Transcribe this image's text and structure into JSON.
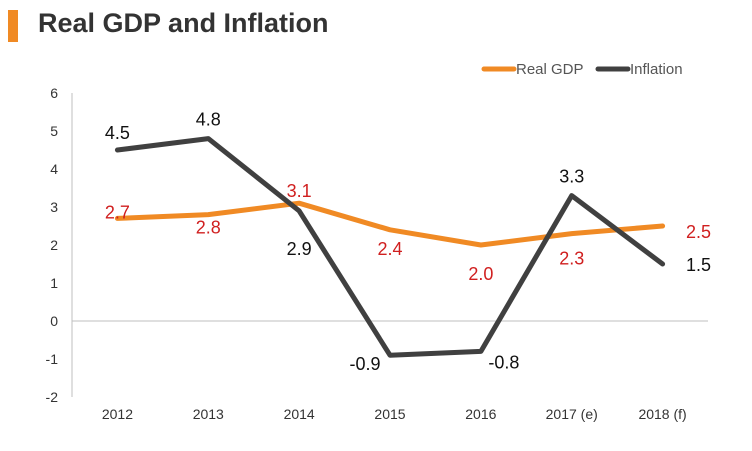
{
  "colors": {
    "accent": "#f08a24",
    "real_gdp": "#f08a24",
    "inflation": "#404040",
    "gdp_label": "#d01f1f",
    "inflation_label": "#111111",
    "axis_text": "#333333"
  },
  "chart_data": {
    "type": "line",
    "title": "Real GDP and Inflation",
    "xlabel": "",
    "ylabel": "",
    "categories": [
      "2012",
      "2013",
      "2014",
      "2015",
      "2016",
      "2017 (e)",
      "2018 (f)"
    ],
    "ylim": [
      -2,
      6
    ],
    "yticks": [
      "6",
      "5",
      "4",
      "3",
      "2",
      "1",
      "0",
      "-1",
      "-2"
    ],
    "grid": false,
    "legend_position": "top-right",
    "series": [
      {
        "name": "Real GDP",
        "values": [
          2.7,
          2.8,
          3.1,
          2.4,
          2.0,
          2.3,
          2.5
        ],
        "labels": [
          "2.7",
          "2.8",
          "3.1",
          "2.4",
          "2.0",
          "2.3",
          "2.5"
        ]
      },
      {
        "name": "Inflation",
        "values": [
          4.5,
          4.8,
          2.9,
          -0.9,
          -0.8,
          3.3,
          1.5
        ],
        "labels": [
          "4.5",
          "4.8",
          "2.9",
          "-0.9",
          "-0.8",
          "3.3",
          "1.5"
        ]
      }
    ]
  }
}
